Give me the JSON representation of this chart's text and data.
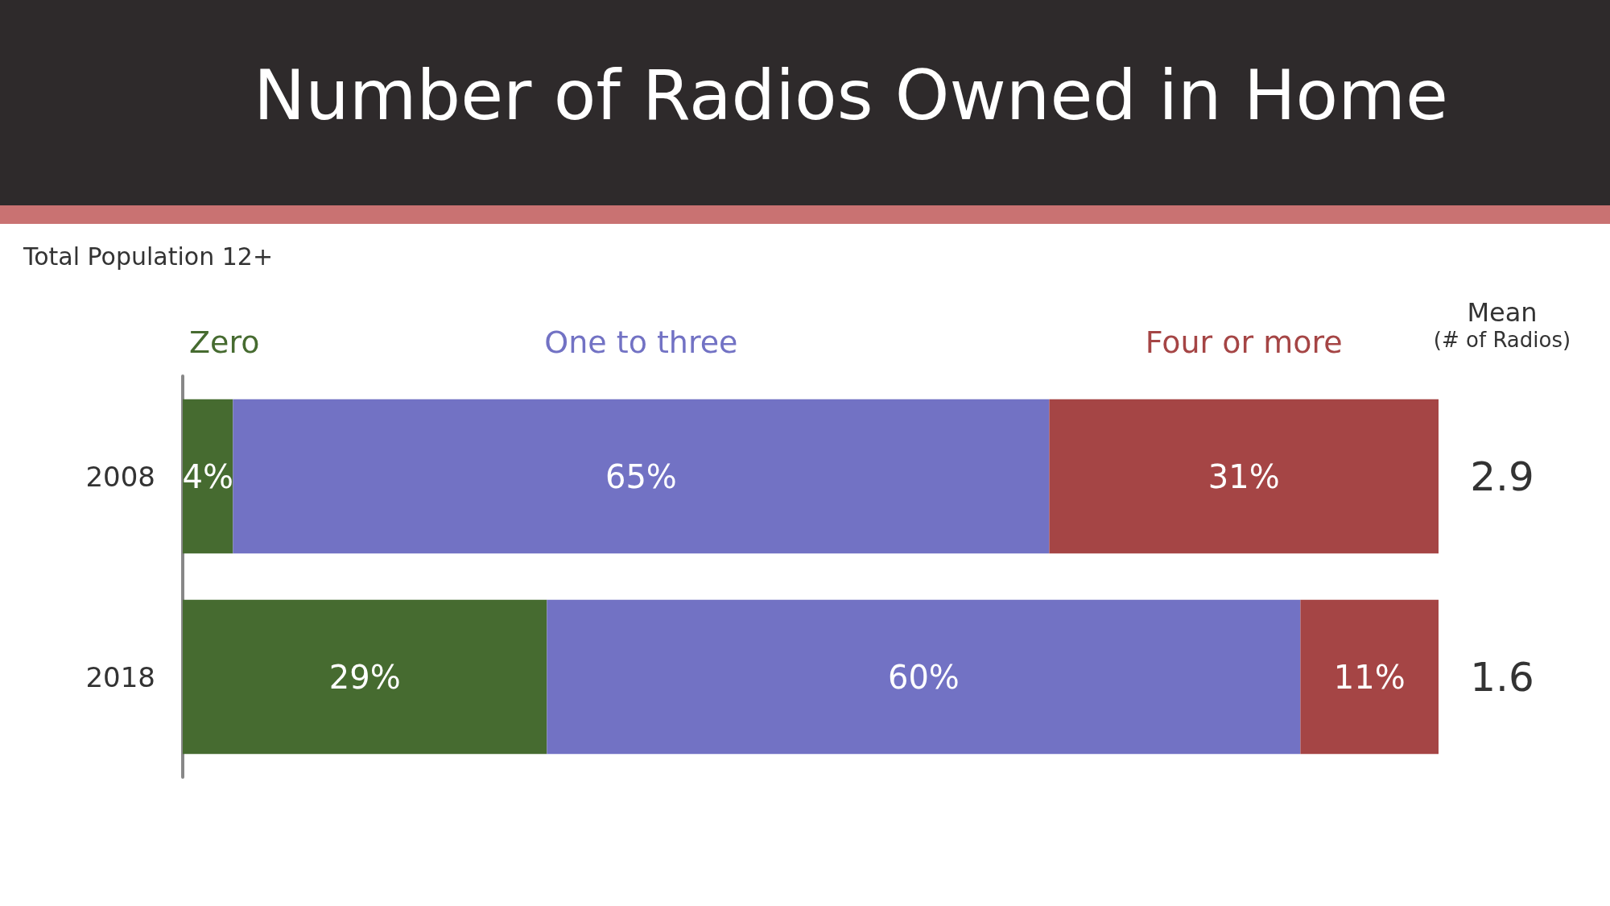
{
  "chart_data": {
    "type": "bar",
    "orientation": "horizontal",
    "stacked": true,
    "title": "Number of Radios Owned in Home",
    "subtitle": "Total Population 12+",
    "categories": [
      "2008",
      "2018"
    ],
    "series": [
      {
        "name": "Zero",
        "color": "#466b30",
        "values": [
          4,
          29
        ],
        "value_labels": [
          "4%",
          "29%"
        ]
      },
      {
        "name": "One to three",
        "color": "#7272c4",
        "values": [
          65,
          60
        ],
        "value_labels": [
          "65%",
          "60%"
        ]
      },
      {
        "name": "Four or more",
        "color": "#a54545",
        "values": [
          31,
          11
        ],
        "value_labels": [
          "31%",
          "11%"
        ]
      }
    ],
    "tick_labels": "y",
    "annotations": [
      "Mean",
      "(# of Radios)",
      "2.9",
      "1.6"
    ]
  }
}
